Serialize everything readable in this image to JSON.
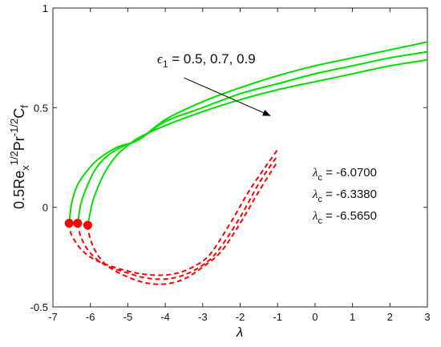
{
  "chart_data": {
    "type": "line",
    "xlabel": "λ",
    "ylabel_parts": [
      "0.5Re",
      "x",
      "1/2",
      "Pr",
      "-1/2",
      "C",
      "f"
    ],
    "xlim": [
      -7,
      3
    ],
    "ylim": [
      -0.5,
      1
    ],
    "x_ticks": [
      -7,
      -6,
      -5,
      -4,
      -3,
      -2,
      -1,
      0,
      1,
      2,
      3
    ],
    "y_ticks": [
      -0.5,
      0,
      0.5,
      1
    ],
    "y_tick_labels": [
      "-0.5",
      "0",
      "0.5",
      "1"
    ],
    "grid": false,
    "colors": {
      "upper": "#00e000",
      "lower": "#ff0000",
      "arrow": "#000000"
    },
    "annotation": {
      "symbol": "ϵ",
      "subscript": "1",
      "text": " = 0.5, 0.7, 0.9",
      "arrow_from": [
        -3.5,
        0.65
      ],
      "arrow_to": [
        -1.2,
        0.46
      ]
    },
    "critical_labels": [
      {
        "symbol": "λ",
        "subscript": "c",
        "text": " = -6.0700"
      },
      {
        "symbol": "λ",
        "subscript": "c",
        "text": " = -6.3380"
      },
      {
        "symbol": "λ",
        "subscript": "c",
        "text": " = -6.5650"
      }
    ],
    "series": [
      {
        "branch": "upper",
        "style": "solid",
        "x": [
          -6.07,
          -5.95,
          -5.8,
          -5.6,
          -5.3,
          -5.0,
          -4.7,
          -4.0,
          -3.0,
          -2.0,
          -1.0,
          0,
          1,
          2,
          3
        ],
        "y": [
          -0.09,
          0.02,
          0.1,
          0.18,
          0.26,
          0.31,
          0.35,
          0.41,
          0.48,
          0.54,
          0.59,
          0.63,
          0.67,
          0.71,
          0.74
        ]
      },
      {
        "branch": "upper",
        "style": "solid",
        "x": [
          -6.338,
          -6.25,
          -6.1,
          -5.9,
          -5.6,
          -5.2,
          -4.7,
          -4.0,
          -3.0,
          -2.0,
          -1.0,
          0,
          1,
          2,
          3
        ],
        "y": [
          -0.08,
          0.02,
          0.1,
          0.18,
          0.25,
          0.3,
          0.34,
          0.43,
          0.5,
          0.57,
          0.62,
          0.67,
          0.71,
          0.75,
          0.78
        ]
      },
      {
        "branch": "upper",
        "style": "solid",
        "x": [
          -6.565,
          -6.5,
          -6.35,
          -6.1,
          -5.8,
          -5.3,
          -4.7,
          -4.0,
          -3.0,
          -2.0,
          -1.0,
          0,
          1,
          2,
          3
        ],
        "y": [
          -0.08,
          0.02,
          0.11,
          0.18,
          0.24,
          0.3,
          0.34,
          0.44,
          0.53,
          0.6,
          0.66,
          0.71,
          0.75,
          0.79,
          0.83
        ]
      },
      {
        "branch": "lower",
        "style": "dashed",
        "x": [
          -6.07,
          -6.0,
          -5.8,
          -5.5,
          -5.0,
          -4.5,
          -4.0,
          -3.5,
          -3.0,
          -2.5,
          -2.0,
          -1.5,
          -1.0
        ],
        "y": [
          -0.09,
          -0.16,
          -0.24,
          -0.3,
          -0.35,
          -0.38,
          -0.385,
          -0.36,
          -0.3,
          -0.22,
          -0.08,
          0.08,
          0.23
        ]
      },
      {
        "branch": "lower",
        "style": "dashed",
        "x": [
          -6.338,
          -6.25,
          -6.0,
          -5.6,
          -5.0,
          -4.5,
          -4.0,
          -3.5,
          -3.0,
          -2.6,
          -2.0,
          -1.5,
          -1.0
        ],
        "y": [
          -0.08,
          -0.15,
          -0.23,
          -0.29,
          -0.33,
          -0.355,
          -0.36,
          -0.34,
          -0.29,
          -0.22,
          -0.05,
          0.12,
          0.26
        ]
      },
      {
        "branch": "lower",
        "style": "dashed",
        "x": [
          -6.565,
          -6.5,
          -6.2,
          -5.8,
          -5.2,
          -4.6,
          -4.0,
          -3.5,
          -3.0,
          -2.7,
          -2.2,
          -1.7,
          -1.0
        ],
        "y": [
          -0.08,
          -0.14,
          -0.22,
          -0.27,
          -0.31,
          -0.335,
          -0.34,
          -0.32,
          -0.27,
          -0.21,
          -0.06,
          0.1,
          0.29
        ]
      }
    ],
    "markers": [
      {
        "x": -6.07,
        "y": -0.09
      },
      {
        "x": -6.338,
        "y": -0.08
      },
      {
        "x": -6.565,
        "y": -0.08
      }
    ]
  }
}
